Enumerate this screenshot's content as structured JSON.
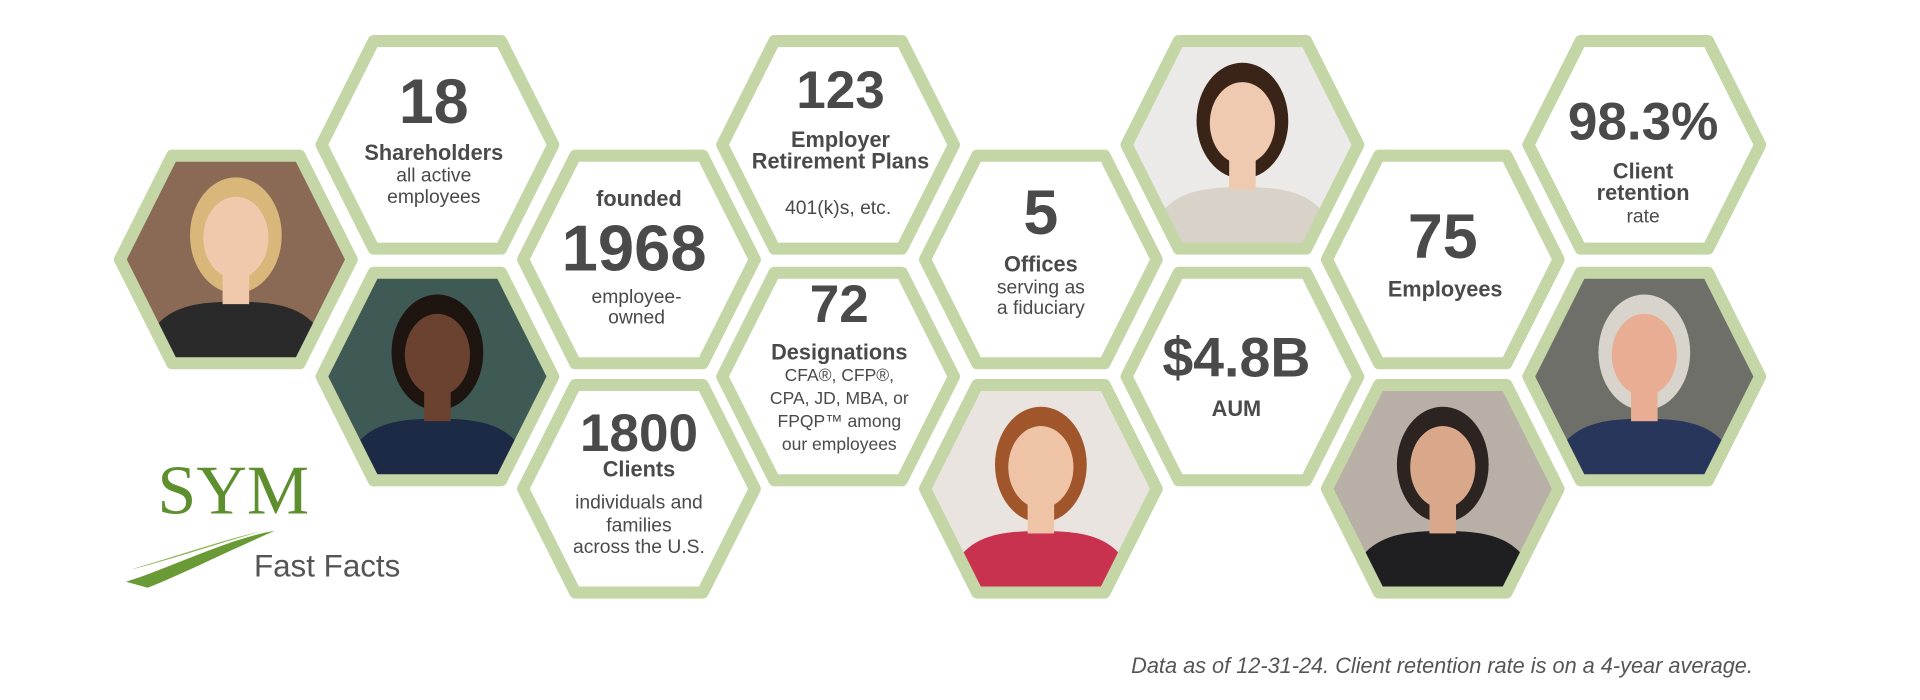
{
  "facts": [
    {
      "number": "18",
      "label": [
        "Shareholders"
      ],
      "detail": [
        "all active",
        "employees"
      ]
    },
    {
      "intro": "founded",
      "number": "1968",
      "detail": [
        "employee-",
        "owned"
      ]
    },
    {
      "number": "1800",
      "label": [
        "Clients"
      ],
      "detail": [
        "individuals and",
        "families",
        "across the U.S."
      ]
    },
    {
      "number": "123",
      "label": [
        "Employer",
        "Retirement Plans"
      ],
      "detail": [
        "401(k)s, etc."
      ]
    },
    {
      "number": "72",
      "label": [
        "Designations"
      ],
      "detail": [
        "CFA®, CFP®,",
        "CPA, JD, MBA, or",
        "FPQP™ among",
        "our employees"
      ]
    },
    {
      "number": "5",
      "label": [
        "Offices"
      ],
      "detail": [
        "serving as",
        "a fiduciary"
      ]
    },
    {
      "number": "$4.8B",
      "label": [
        "AUM"
      ]
    },
    {
      "number": "75",
      "label": [
        "Employees"
      ]
    },
    {
      "number": "98.3%",
      "label": [
        "Client",
        "retention"
      ],
      "detail": [
        "rate"
      ]
    }
  ],
  "logo": {
    "name": "SYM",
    "tagline": "Fast Facts"
  },
  "footnote": "Data as of 12-31-24. Client retention rate is on a 4-year average."
}
